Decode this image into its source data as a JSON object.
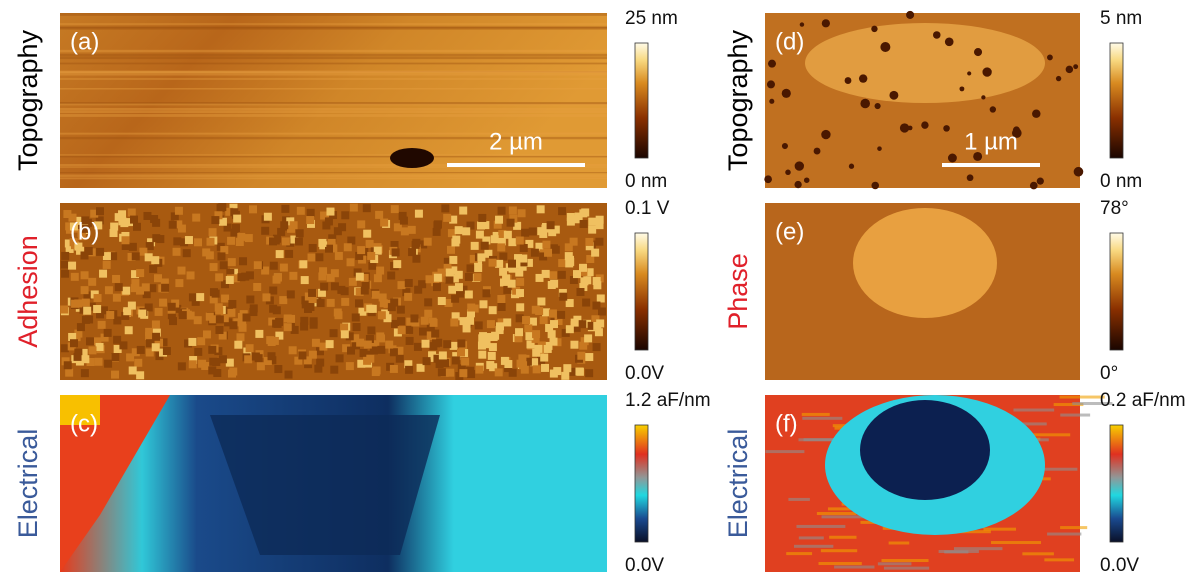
{
  "panels": [
    {
      "label": "(a)",
      "side_label": "Topography",
      "colorbar_max": "25 nm",
      "colorbar_min": "0 nm",
      "scale_bar": "2 µm"
    },
    {
      "label": "(b)",
      "side_label": "Adhesion",
      "colorbar_max": "0.1 V",
      "colorbar_min": "0.0V"
    },
    {
      "label": "(c)",
      "side_label": "Electrical",
      "colorbar_max": "1.2 aF/nm",
      "colorbar_min": "0.0V"
    },
    {
      "label": "(d)",
      "side_label": "Topography",
      "colorbar_max": "5 nm",
      "colorbar_min": "0 nm",
      "scale_bar": "1 µm"
    },
    {
      "label": "(e)",
      "side_label": "Phase",
      "colorbar_max": "78°",
      "colorbar_min": "0°"
    },
    {
      "label": "(f)",
      "side_label": "Electrical",
      "colorbar_max": "0.2 aF/nm",
      "colorbar_min": "0.0V"
    }
  ]
}
